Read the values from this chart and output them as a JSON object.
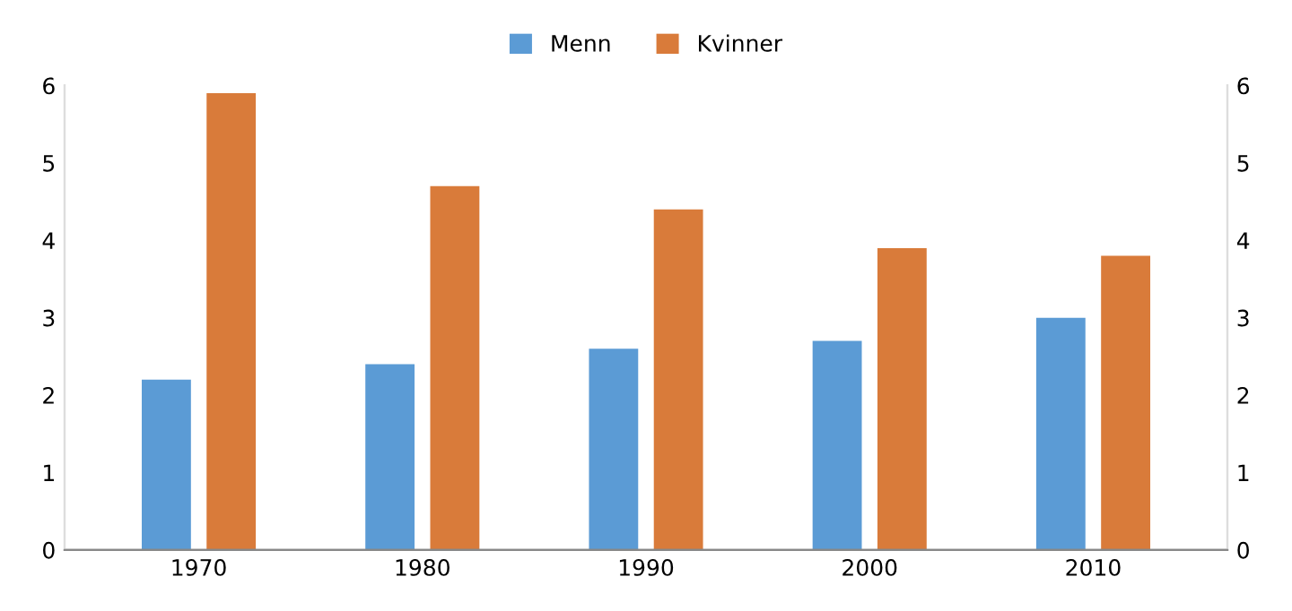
{
  "chart_data": {
    "type": "bar",
    "categories": [
      "1970",
      "1980",
      "1990",
      "2000",
      "2010"
    ],
    "series": [
      {
        "name": "Menn",
        "color": "#5b9bd5",
        "values": [
          2.2,
          2.4,
          2.6,
          2.7,
          3.0
        ]
      },
      {
        "name": "Kvinner",
        "color": "#d97b3a",
        "values": [
          5.9,
          4.7,
          4.4,
          3.9,
          3.8
        ]
      }
    ],
    "ylim": [
      0,
      6
    ],
    "yticks": [
      0,
      1,
      2,
      3,
      4,
      5,
      6
    ],
    "y2lim": [
      0,
      6
    ],
    "y2ticks": [
      0,
      1,
      2,
      3,
      4,
      5,
      6
    ],
    "grid": false,
    "legend": "top"
  }
}
